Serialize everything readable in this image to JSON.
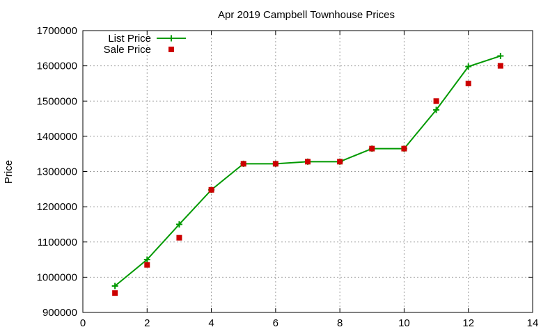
{
  "chart_data": {
    "type": "line",
    "title": "Apr 2019 Campbell Townhouse Prices",
    "xlabel": "",
    "ylabel": "Price",
    "xlim": [
      0,
      14
    ],
    "ylim": [
      900000,
      1700000
    ],
    "xticks": [
      0,
      2,
      4,
      6,
      8,
      10,
      12,
      14
    ],
    "yticks": [
      900000,
      1000000,
      1100000,
      1200000,
      1300000,
      1400000,
      1500000,
      1600000,
      1700000
    ],
    "grid": true,
    "legend_position": "top-left",
    "series": [
      {
        "name": "List Price",
        "style": "line-with-plus-markers",
        "color": "#009900",
        "x": [
          1,
          2,
          3,
          4,
          5,
          6,
          7,
          8,
          9,
          10,
          11,
          12,
          13
        ],
        "y": [
          975000,
          1050000,
          1150000,
          1248000,
          1322000,
          1322000,
          1328000,
          1328000,
          1365000,
          1365000,
          1475000,
          1598000,
          1628000
        ]
      },
      {
        "name": "Sale Price",
        "style": "square-markers",
        "color": "#cc0000",
        "x": [
          1,
          2,
          3,
          4,
          5,
          6,
          7,
          8,
          9,
          10,
          11,
          12,
          13
        ],
        "y": [
          955000,
          1035000,
          1112000,
          1248000,
          1322000,
          1322000,
          1328000,
          1328000,
          1365000,
          1365000,
          1500000,
          1550000,
          1600000
        ]
      }
    ]
  }
}
